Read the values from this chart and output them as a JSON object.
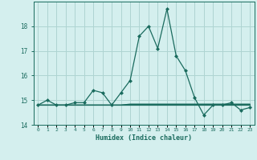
{
  "x": [
    0,
    1,
    2,
    3,
    4,
    5,
    6,
    7,
    8,
    9,
    10,
    11,
    12,
    13,
    14,
    15,
    16,
    17,
    18,
    19,
    20,
    21,
    22,
    23
  ],
  "y_main": [
    14.8,
    15.0,
    14.8,
    14.8,
    14.9,
    14.9,
    15.4,
    15.3,
    14.8,
    15.3,
    15.8,
    17.6,
    18.0,
    17.1,
    18.7,
    16.8,
    16.2,
    15.1,
    14.4,
    14.8,
    14.8,
    14.9,
    14.6,
    14.7
  ],
  "y_flat1": [
    14.8,
    14.8,
    14.8,
    14.8,
    14.8,
    14.8,
    14.8,
    14.8,
    14.8,
    14.8,
    14.8,
    14.8,
    14.8,
    14.8,
    14.8,
    14.8,
    14.8,
    14.8,
    14.8,
    14.8,
    14.8,
    14.8,
    14.8,
    14.8
  ],
  "y_flat2": [
    14.8,
    14.8,
    14.8,
    14.8,
    14.8,
    14.8,
    14.8,
    14.8,
    14.8,
    14.8,
    14.82,
    14.82,
    14.82,
    14.82,
    14.82,
    14.82,
    14.82,
    14.82,
    14.82,
    14.82,
    14.82,
    14.82,
    14.82,
    14.82
  ],
  "y_flat3": [
    14.8,
    14.8,
    14.8,
    14.8,
    14.8,
    14.8,
    14.8,
    14.8,
    14.8,
    14.8,
    14.84,
    14.84,
    14.84,
    14.84,
    14.84,
    14.84,
    14.84,
    14.84,
    14.84,
    14.84,
    14.84,
    14.84,
    14.84,
    14.84
  ],
  "line_color": "#1a6b5e",
  "bg_color": "#d4efee",
  "grid_color": "#aed4d2",
  "xlabel": "Humidex (Indice chaleur)",
  "ylim": [
    14.0,
    19.0
  ],
  "xlim": [
    -0.5,
    23.5
  ],
  "yticks": [
    14,
    15,
    16,
    17,
    18
  ],
  "xtick_labels": [
    "0",
    "1",
    "2",
    "3",
    "4",
    "5",
    "6",
    "7",
    "8",
    "9",
    "10",
    "11",
    "12",
    "13",
    "14",
    "15",
    "16",
    "17",
    "18",
    "19",
    "20",
    "21",
    "22",
    "23"
  ]
}
